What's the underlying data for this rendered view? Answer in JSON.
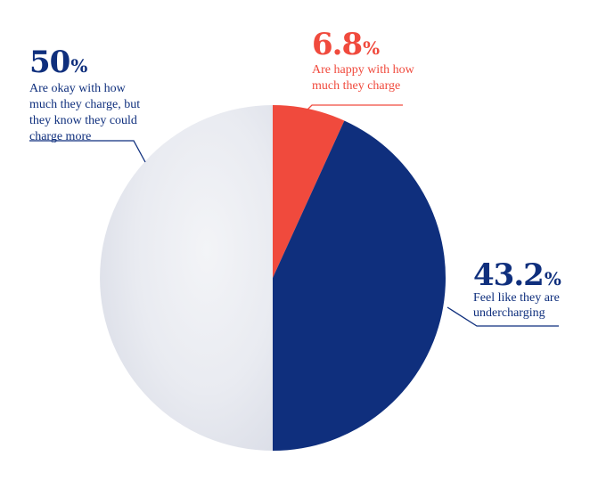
{
  "chart_data": {
    "type": "pie",
    "slices": [
      {
        "value": 6.8,
        "value_label": "6.8",
        "unit": "%",
        "description": [
          "Are happy with how",
          "much they charge"
        ],
        "color": "#f04a3d"
      },
      {
        "value": 43.2,
        "value_label": "43.2",
        "unit": "%",
        "description": [
          "Feel like they are",
          "undercharging"
        ],
        "color": "#0f2f7d"
      },
      {
        "value": 50,
        "value_label": "50",
        "unit": "%",
        "description": [
          "Are okay with how",
          "much they charge, but",
          "they know they could",
          "charge more"
        ],
        "color": "#e6e8ee"
      }
    ],
    "label_text_color_dark": "#0f2f7d",
    "label_text_color_accent": "#f04a3d"
  }
}
